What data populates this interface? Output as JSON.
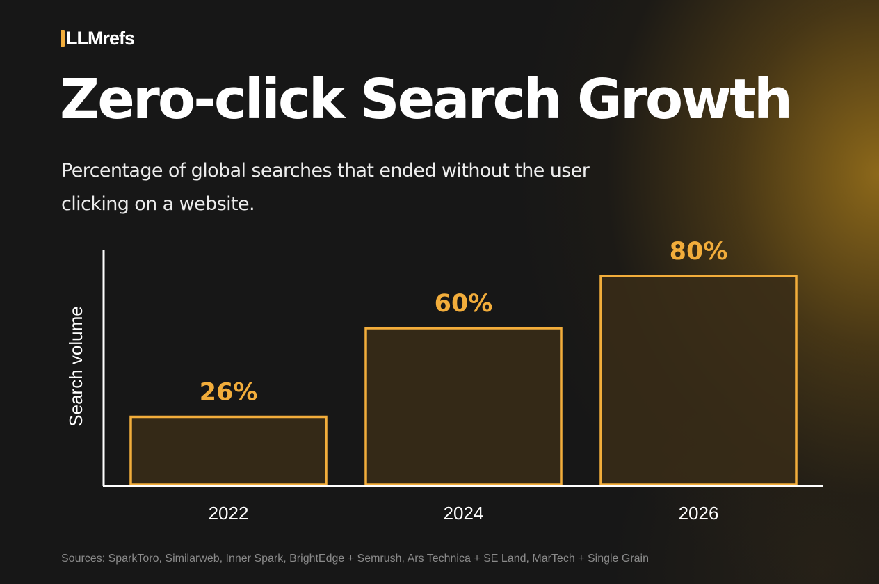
{
  "brand": {
    "logo_text": "LLMrefs",
    "accent_color": "#f2ad3b"
  },
  "header": {
    "title": "Zero-click Search Growth",
    "subtitle": "Percentage of global searches that ended without the user clicking on a website."
  },
  "chart_data": {
    "type": "bar",
    "categories": [
      "2022",
      "2024",
      "2026"
    ],
    "values": [
      26,
      60,
      80
    ],
    "value_labels": [
      "26%",
      "60%",
      "80%"
    ],
    "title": "Zero-click Search Growth",
    "xlabel": "",
    "ylabel": "Search volume",
    "ylim": [
      0,
      100
    ],
    "grid": false,
    "bar_fill_color": "#3a2d18",
    "bar_stroke_color": "#f2ad3b",
    "label_color": "#f2ad3b",
    "axis_color": "#ffffff"
  },
  "footer": {
    "sources": "Sources: SparkToro, Similarweb, Inner Spark, BrightEdge + Semrush, Ars Technica + SE Land, MarTech + Single Grain"
  }
}
